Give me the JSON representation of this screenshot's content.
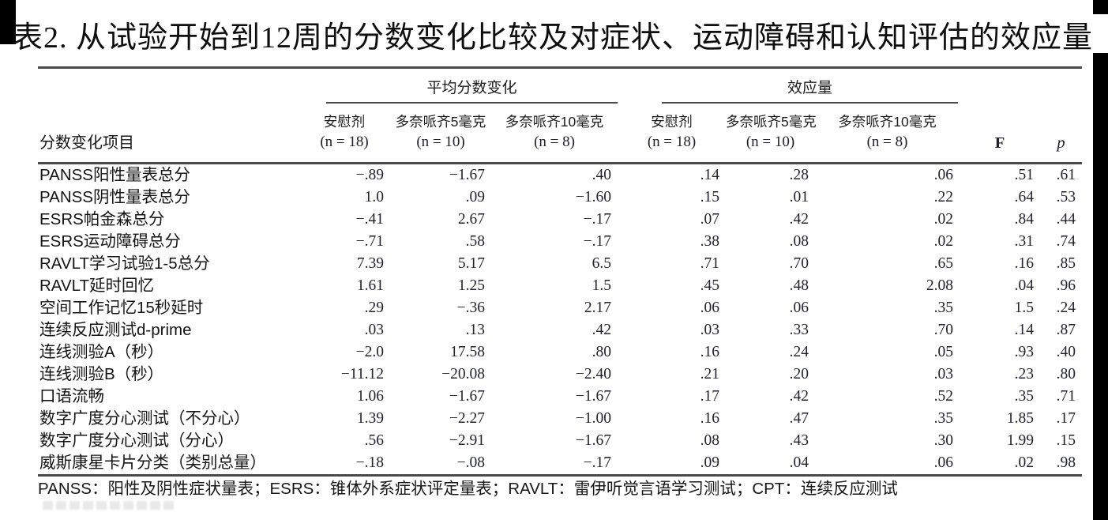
{
  "title": "表2. 从试验开始到12周的分数变化比较及对症状、运动障碍和认知评估的效应量",
  "table": {
    "row_header": "分数变化项目",
    "group_mean": "平均分数变化",
    "group_effect": "效应量",
    "col_names": [
      "安慰剂",
      "多奈哌齐5毫克",
      "多奈哌齐10毫克",
      "安慰剂",
      "多奈哌齐5毫克",
      "多奈哌齐10毫克"
    ],
    "col_ns": [
      "(n = 18)",
      "(n = 10)",
      "(n = 8)",
      "(n = 18)",
      "(n = 10)",
      "(n = 8)"
    ],
    "f_label": "F",
    "p_label": "p",
    "rows": [
      {
        "label": "PANSS阳性量表总分",
        "values": [
          "−.89",
          "−1.67",
          ".40",
          ".14",
          ".28",
          ".06",
          ".51",
          ".61"
        ]
      },
      {
        "label": "PANSS阴性量表总分",
        "values": [
          "1.0",
          ".09",
          "−1.60",
          ".15",
          ".01",
          ".22",
          ".64",
          ".53"
        ]
      },
      {
        "label": "ESRS帕金森总分",
        "values": [
          "−.41",
          "2.67",
          "−.17",
          ".07",
          ".42",
          ".02",
          ".84",
          ".44"
        ]
      },
      {
        "label": "ESRS运动障碍总分",
        "values": [
          "−.71",
          ".58",
          "−.17",
          ".38",
          ".08",
          ".02",
          ".31",
          ".74"
        ]
      },
      {
        "label": "RAVLT学习试验1-5总分",
        "values": [
          "7.39",
          "5.17",
          "6.5",
          ".71",
          ".70",
          ".65",
          ".16",
          ".85"
        ]
      },
      {
        "label": "RAVLT延时回忆",
        "values": [
          "1.61",
          "1.25",
          "1.5",
          ".45",
          ".48",
          "2.08",
          ".04",
          ".96"
        ]
      },
      {
        "label": "空间工作记忆15秒延时",
        "values": [
          ".29",
          "−.36",
          "2.17",
          ".06",
          ".06",
          ".35",
          "1.5",
          ".24"
        ]
      },
      {
        "label": "连续反应测试d-prime",
        "values": [
          ".03",
          ".13",
          ".42",
          ".03",
          ".33",
          ".70",
          ".14",
          ".87"
        ]
      },
      {
        "label": "连线测验A（秒）",
        "values": [
          "−2.0",
          "17.58",
          ".80",
          ".16",
          ".24",
          ".05",
          ".93",
          ".40"
        ]
      },
      {
        "label": "连线测验B（秒）",
        "values": [
          "−11.12",
          "−20.08",
          "−2.40",
          ".21",
          ".20",
          ".03",
          ".23",
          ".80"
        ]
      },
      {
        "label": "口语流畅",
        "values": [
          "1.06",
          "−1.67",
          "−1.67",
          ".17",
          ".42",
          ".52",
          ".35",
          ".71"
        ]
      },
      {
        "label": "数字广度分心测试（不分心）",
        "values": [
          "1.39",
          "−2.27",
          "−1.00",
          ".16",
          ".47",
          ".35",
          "1.85",
          ".17"
        ]
      },
      {
        "label": "数字广度分心测试（分心）",
        "values": [
          ".56",
          "−2.91",
          "−1.67",
          ".08",
          ".43",
          ".30",
          "1.99",
          ".15"
        ]
      },
      {
        "label": "威斯康星卡片分类（类别总量）",
        "values": [
          "−.18",
          "−.08",
          "−.17",
          ".09",
          ".04",
          ".06",
          ".02",
          ".98"
        ]
      }
    ]
  },
  "footnote": "PANSS：阳性及阴性症状量表；ESRS：锥体外系症状评定量表；RAVLT：雷伊听觉言语学习测试；CPT：连续反应测试"
}
